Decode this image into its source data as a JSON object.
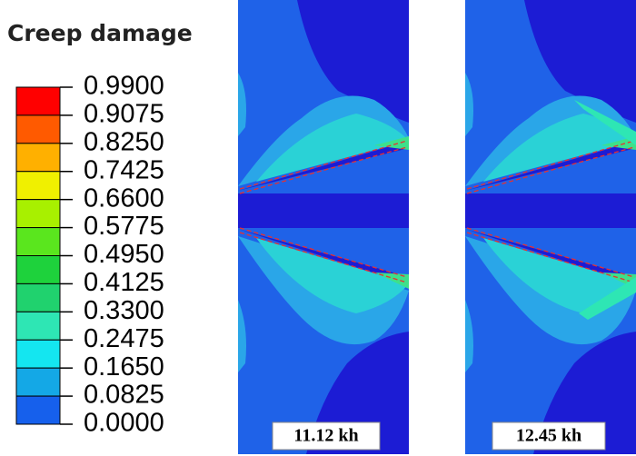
{
  "legend": {
    "title": "Creep damage",
    "levels": [
      "0.9900",
      "0.9075",
      "0.8250",
      "0.7425",
      "0.6600",
      "0.5775",
      "0.4950",
      "0.4125",
      "0.3300",
      "0.2475",
      "0.1650",
      "0.0825",
      "0.0000"
    ],
    "colors": [
      "#ff0000",
      "#ff5a00",
      "#ffb000",
      "#f0f000",
      "#a8f000",
      "#5ae61e",
      "#1ed23c",
      "#20d26e",
      "#2ee6b4",
      "#14e6f0",
      "#14a8e6",
      "#1660ec",
      "#1414d2"
    ]
  },
  "panels": [
    {
      "label": "11.12 kh"
    },
    {
      "label": "12.45 kh"
    }
  ]
}
